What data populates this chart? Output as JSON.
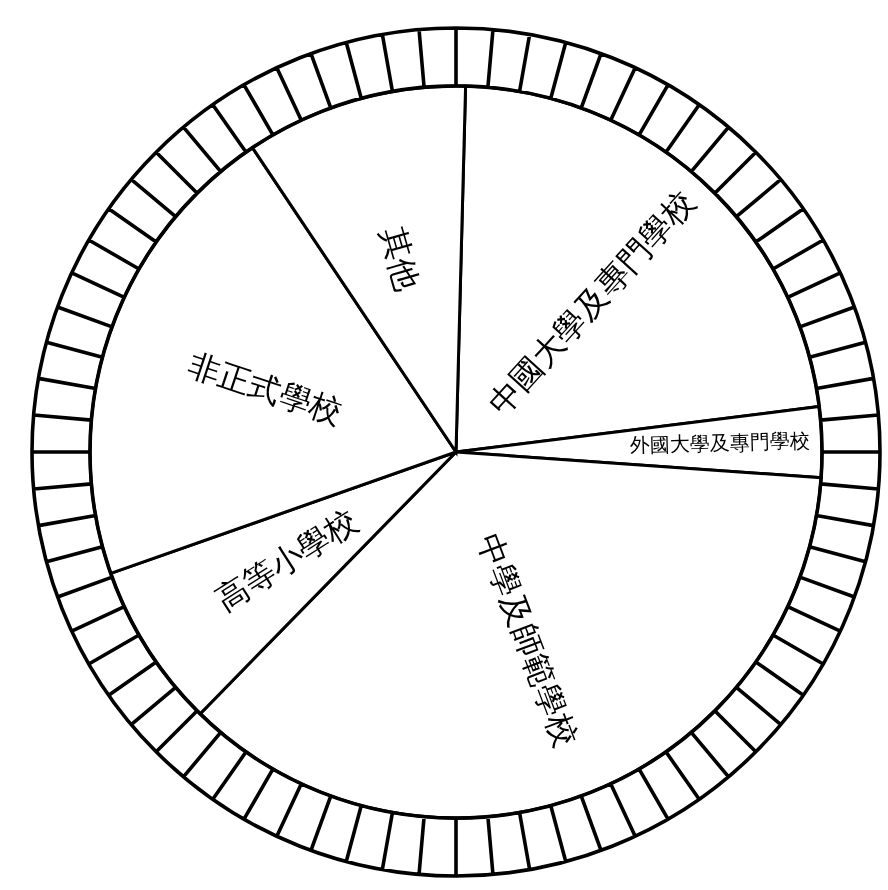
{
  "chart_data": {
    "type": "pie",
    "categories": [
      "中國大學及專門學校",
      "外國大學及專門學校",
      "中學及師範學校",
      "高等小學校",
      "非正式學校",
      "其他"
    ],
    "values": [
      22.6,
      3.1,
      36.2,
      7.3,
      21.0,
      9.8
    ],
    "colors": [
      "#ffffff",
      "#ffffff",
      "#ffffff",
      "#ffffff",
      "#ffffff",
      "#ffffff"
    ]
  }
}
